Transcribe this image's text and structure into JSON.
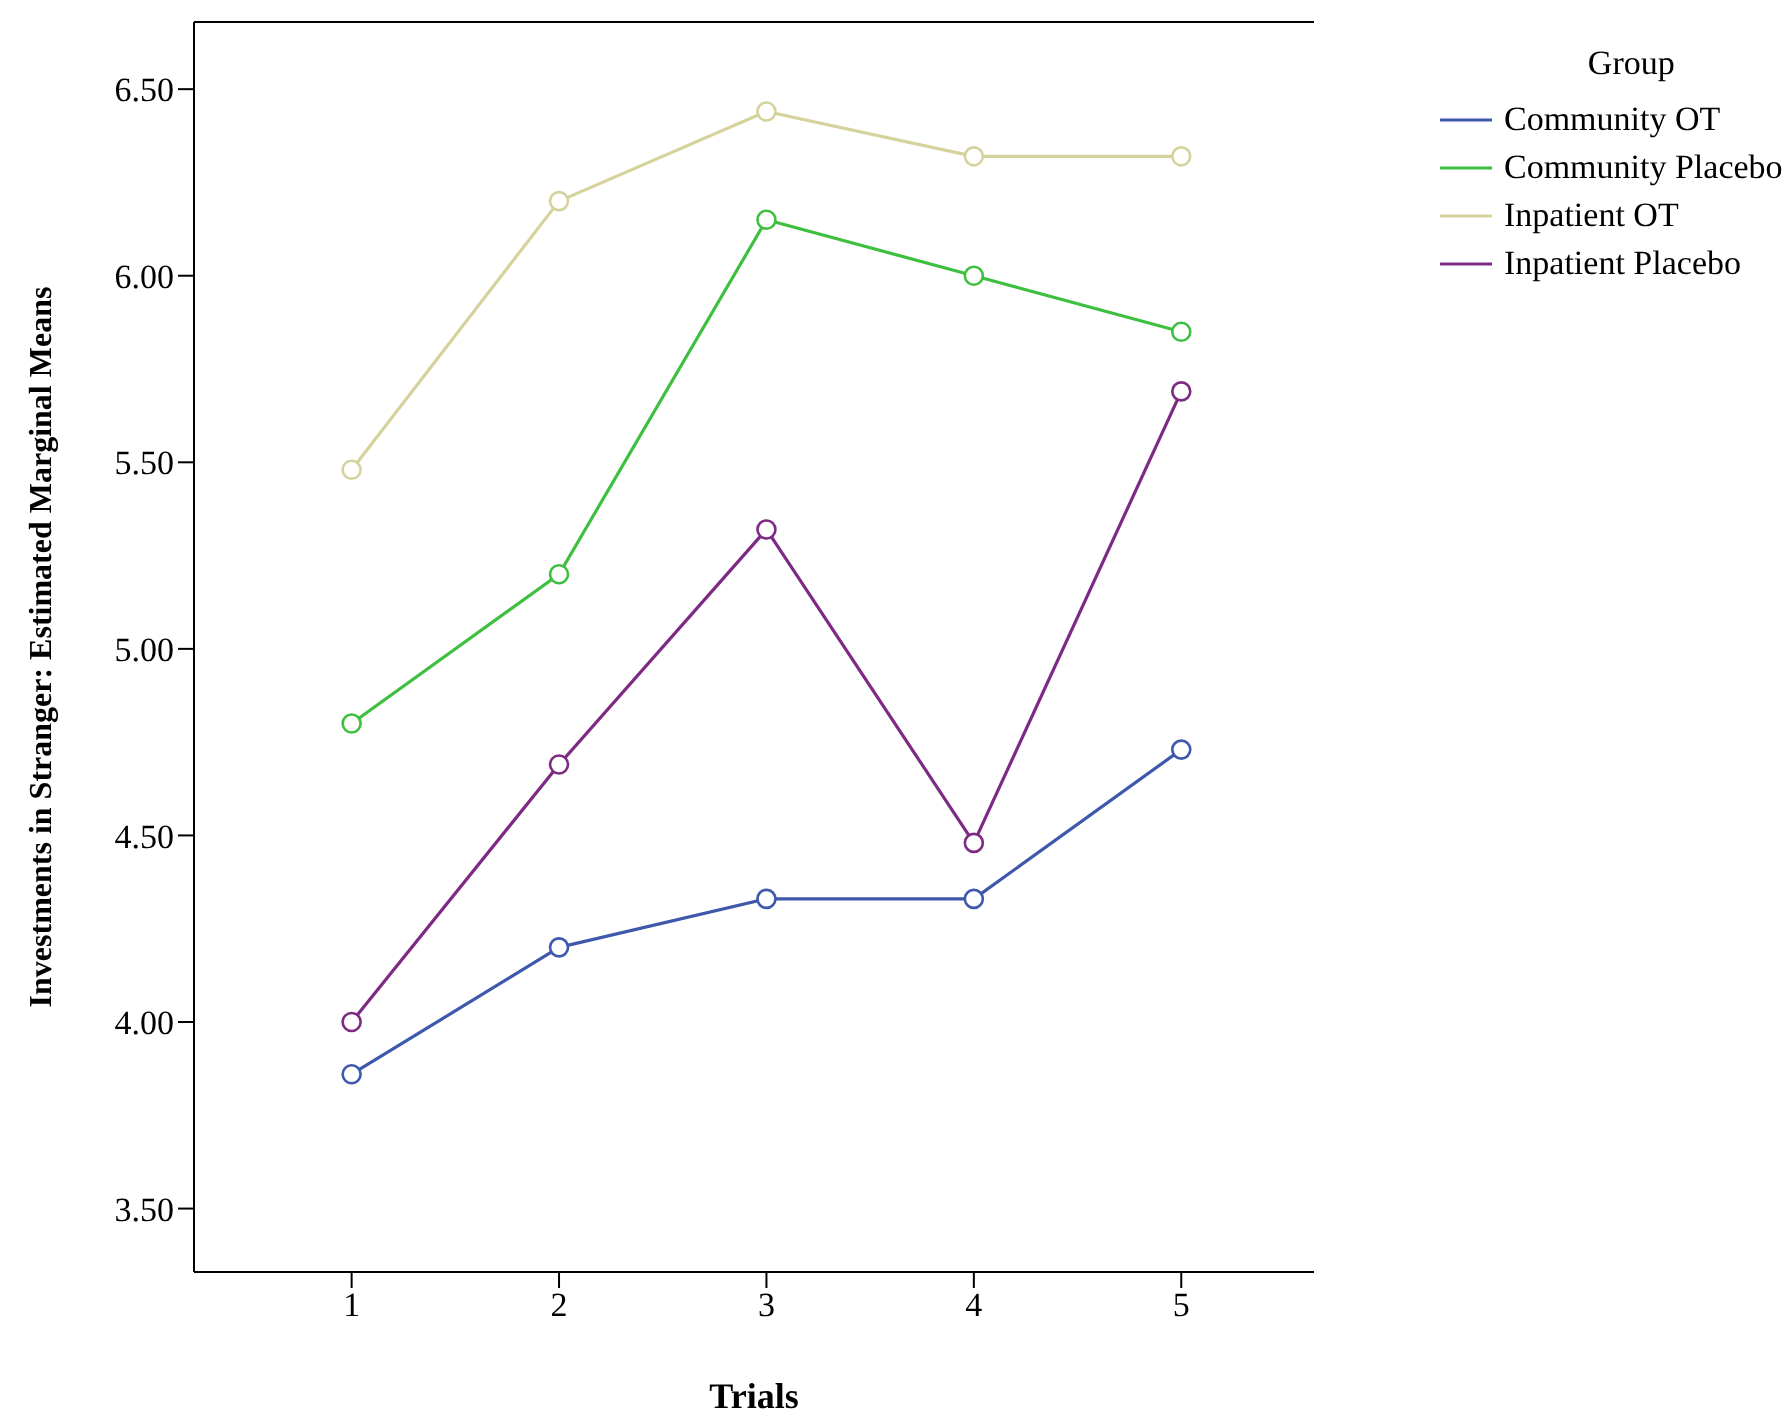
{
  "chart_data": {
    "type": "line",
    "xlabel": "Trials",
    "ylabel": "Investments in Stranger: Estimated Marginal Means",
    "legend_title": "Group",
    "legend": "right",
    "marker": "circle",
    "line_style": "solid",
    "x": [
      1,
      2,
      3,
      4,
      5
    ],
    "xlim": [
      0.24,
      5.64
    ],
    "xticks": [
      1,
      2,
      3,
      4,
      5
    ],
    "ylim": [
      3.33,
      6.68
    ],
    "yticks": [
      {
        "value": 3.5,
        "label": "3.50"
      },
      {
        "value": 4,
        "label": "4.00"
      },
      {
        "value": 4.5,
        "label": "4.50"
      },
      {
        "value": 5,
        "label": "5.00"
      },
      {
        "value": 5.5,
        "label": "5.50"
      },
      {
        "value": 6,
        "label": "6.00"
      },
      {
        "value": 6.5,
        "label": "6.50"
      }
    ],
    "series": [
      {
        "name": "Community OT",
        "color": "#3e58ac",
        "values": [
          3.86,
          4.2,
          4.33,
          4.33,
          4.73
        ]
      },
      {
        "name": "Community Placebo",
        "color": "#3fbf3f",
        "values": [
          4.8,
          5.2,
          6.15,
          6.0,
          5.85
        ]
      },
      {
        "name": "Inpatient OT",
        "color": "#d6d29c",
        "values": [
          5.48,
          6.2,
          6.44,
          6.32,
          6.32
        ]
      },
      {
        "name": "Inpatient Placebo",
        "color": "#7e2a84",
        "values": [
          4.0,
          4.69,
          5.32,
          4.48,
          5.69
        ]
      }
    ]
  }
}
